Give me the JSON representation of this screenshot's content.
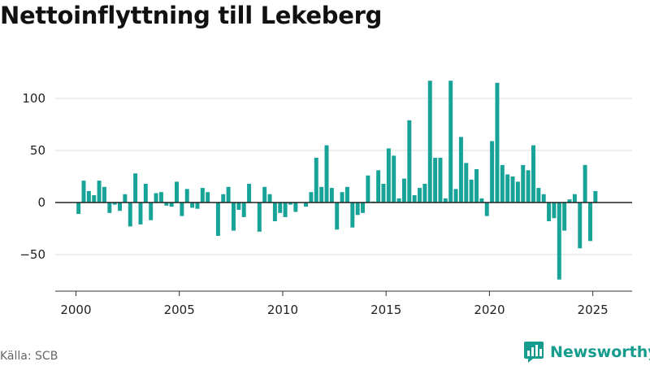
{
  "header": {
    "title": "Nettoinflyttning till Lekeberg"
  },
  "footer": {
    "source": "Källa: SCB",
    "brand": "Newsworthy"
  },
  "colors": {
    "bar": "#17A398",
    "zero_line": "#222222",
    "grid": "#dddddd",
    "brand": "#169C8E"
  },
  "chart_data": {
    "type": "bar",
    "title": "Nettoinflyttning till Lekeberg",
    "xlabel": "",
    "ylabel": "",
    "ylim": [
      -85,
      125
    ],
    "yticks": [
      -50,
      0,
      50,
      100
    ],
    "ytick_labels": [
      "−50",
      "0",
      "50",
      "100"
    ],
    "xlim": [
      1999.0,
      2026.9
    ],
    "xticks": [
      2000,
      2005,
      2010,
      2015,
      2020,
      2025
    ],
    "xtick_labels": [
      "2000",
      "2005",
      "2010",
      "2015",
      "2020",
      "2025"
    ],
    "grid": true,
    "x": [
      2000.125,
      2000.375,
      2000.625,
      2000.875,
      2001.125,
      2001.375,
      2001.625,
      2001.875,
      2002.125,
      2002.375,
      2002.625,
      2002.875,
      2003.125,
      2003.375,
      2003.625,
      2003.875,
      2004.125,
      2004.375,
      2004.625,
      2004.875,
      2005.125,
      2005.375,
      2005.625,
      2005.875,
      2006.125,
      2006.375,
      2006.625,
      2006.875,
      2007.125,
      2007.375,
      2007.625,
      2007.875,
      2008.125,
      2008.375,
      2008.625,
      2008.875,
      2009.125,
      2009.375,
      2009.625,
      2009.875,
      2010.125,
      2010.375,
      2010.625,
      2010.875,
      2011.125,
      2011.375,
      2011.625,
      2011.875,
      2012.125,
      2012.375,
      2012.625,
      2012.875,
      2013.125,
      2013.375,
      2013.625,
      2013.875,
      2014.125,
      2014.375,
      2014.625,
      2014.875,
      2015.125,
      2015.375,
      2015.625,
      2015.875,
      2016.125,
      2016.375,
      2016.625,
      2016.875,
      2017.125,
      2017.375,
      2017.625,
      2017.875,
      2018.125,
      2018.375,
      2018.625,
      2018.875,
      2019.125,
      2019.375,
      2019.625,
      2019.875,
      2020.125,
      2020.375,
      2020.625,
      2020.875,
      2021.125,
      2021.375,
      2021.625,
      2021.875,
      2022.125,
      2022.375,
      2022.625,
      2022.875,
      2023.125,
      2023.375,
      2023.625,
      2023.875,
      2024.125,
      2024.375,
      2024.625,
      2024.875,
      2025.125,
      2025.375
    ],
    "values": [
      -11,
      21,
      11,
      7,
      21,
      15,
      -10,
      -2,
      -8,
      8,
      -23,
      28,
      -21,
      18,
      -17,
      9,
      10,
      -3,
      -4,
      20,
      -13,
      13,
      -5,
      -6,
      14,
      10,
      0,
      -32,
      8,
      15,
      -27,
      -7,
      -14,
      18,
      0,
      -28,
      15,
      8,
      -18,
      -10,
      -14,
      -2,
      -9,
      0,
      -4,
      10,
      43,
      15,
      55,
      14,
      -26,
      10,
      15,
      -24,
      -12,
      -10,
      26,
      1,
      31,
      18,
      52,
      45,
      4,
      23,
      79,
      7,
      14,
      18,
      117,
      43,
      43,
      4,
      117,
      13,
      63,
      38,
      22,
      32,
      4,
      -13,
      59,
      115,
      36,
      27,
      25,
      20,
      36,
      31,
      55,
      14,
      8,
      -18,
      -15,
      -74,
      -27,
      3,
      8,
      -44,
      36,
      -37,
      11,
      0
    ]
  }
}
